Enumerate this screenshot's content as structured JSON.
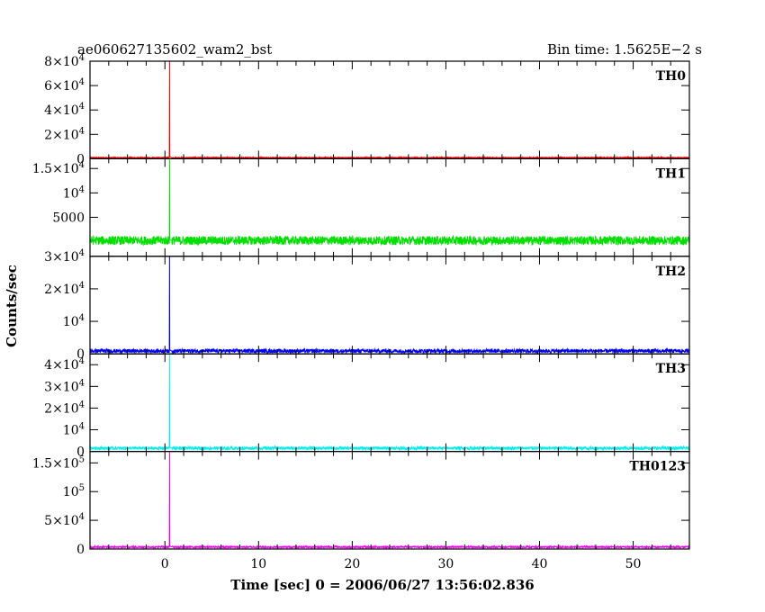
{
  "header": {
    "title": "ae060627135602_wam2_bst",
    "bin_time": "Bin time: 1.5625E−2 s"
  },
  "chart_data": {
    "type": "line",
    "xlabel": "Time [sec] 0 = 2006/06/27 13:56:02.836",
    "ylabel": "Counts/sec",
    "xlim": [
      -8,
      56
    ],
    "xticks": [
      0,
      10,
      20,
      30,
      40,
      50
    ],
    "panels": [
      {
        "name": "TH0",
        "color": "#ff0000",
        "ylim": [
          0,
          80000
        ],
        "yticks": [
          {
            "v": 0,
            "m": "0",
            "e": ""
          },
          {
            "v": 20000,
            "m": "2×10",
            "e": "4"
          },
          {
            "v": 40000,
            "m": "4×10",
            "e": "4"
          },
          {
            "v": 60000,
            "m": "6×10",
            "e": "4"
          },
          {
            "v": 80000,
            "m": "8×10",
            "e": "4"
          }
        ],
        "baseline": 900,
        "noise": 400,
        "spike_x": 0.5,
        "spike_peak": 80000
      },
      {
        "name": "TH1",
        "color": "#00e000",
        "ylim": [
          -3000,
          17000
        ],
        "yticks": [
          {
            "v": 5000,
            "m": "5000",
            "e": ""
          },
          {
            "v": 10000,
            "m": "10",
            "e": "4"
          },
          {
            "v": 15000,
            "m": "1.5×10",
            "e": "4"
          }
        ],
        "edge_label": {
          "m": "3×10",
          "e": "4"
        },
        "baseline": 250,
        "noise": 900,
        "spike_x": 0.5,
        "spike_peak": 17000
      },
      {
        "name": "TH2",
        "color": "#0000ff",
        "ylim": [
          0,
          30000
        ],
        "yticks": [
          {
            "v": 0,
            "m": "0",
            "e": ""
          },
          {
            "v": 10000,
            "m": "10",
            "e": "4"
          },
          {
            "v": 20000,
            "m": "2×10",
            "e": "4"
          }
        ],
        "baseline": 900,
        "noise": 600,
        "spike_x": 0.5,
        "spike_peak": 30000
      },
      {
        "name": "TH3",
        "color": "#00eeee",
        "ylim": [
          0,
          45000
        ],
        "yticks": [
          {
            "v": 0,
            "m": "0",
            "e": ""
          },
          {
            "v": 10000,
            "m": "10",
            "e": "4"
          },
          {
            "v": 20000,
            "m": "2×10",
            "e": "4"
          },
          {
            "v": 30000,
            "m": "3×10",
            "e": "4"
          },
          {
            "v": 40000,
            "m": "4×10",
            "e": "4"
          }
        ],
        "baseline": 1500,
        "noise": 700,
        "spike_x": 0.5,
        "spike_peak": 45000
      },
      {
        "name": "TH0123",
        "color": "#ee00ee",
        "ylim": [
          0,
          170000
        ],
        "yticks": [
          {
            "v": 0,
            "m": "0",
            "e": ""
          },
          {
            "v": 50000,
            "m": "5×10",
            "e": "4"
          },
          {
            "v": 100000,
            "m": "10",
            "e": "5"
          },
          {
            "v": 150000,
            "m": "1.5×10",
            "e": "5"
          }
        ],
        "baseline": 3500,
        "noise": 1500,
        "spike_x": 0.5,
        "spike_peak": 170000
      }
    ]
  }
}
